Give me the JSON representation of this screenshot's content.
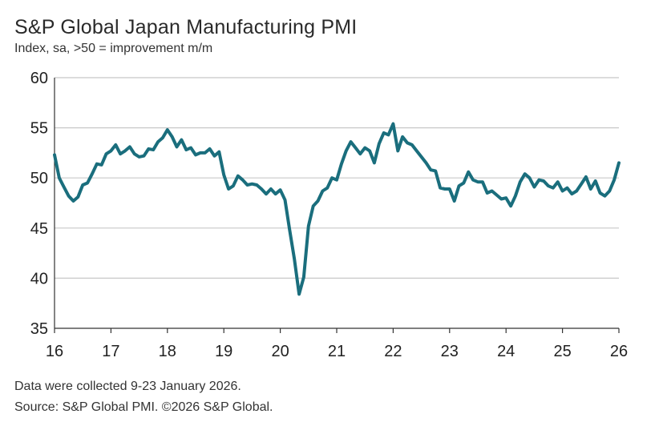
{
  "title": "S&P Global Japan Manufacturing PMI",
  "subtitle": "Index, sa, >50 = improvement m/m",
  "footnote_collection": "Data were collected 9-23 January 2026.",
  "footnote_source": "Source: S&P Global PMI. ©2026 S&P Global.",
  "colors": {
    "line": "#1a6e7d",
    "grid": "#c8c8c8",
    "axis": "#333333"
  },
  "chart_data": {
    "type": "line",
    "title": "S&P Global Japan Manufacturing PMI",
    "ylabel": "Index, sa, >50 = improvement m/m",
    "xlabel": "",
    "ylim": [
      35,
      60
    ],
    "yticks": [
      "60",
      "55",
      "50",
      "45",
      "40",
      "35"
    ],
    "yticks_values": [
      60,
      55,
      50,
      45,
      40,
      35
    ],
    "xlim": [
      16,
      26
    ],
    "xticks": [
      "16",
      "17",
      "18",
      "19",
      "20",
      "21",
      "22",
      "23",
      "24",
      "25",
      "26"
    ],
    "grid": true,
    "series": [
      {
        "name": "Japan Manufacturing PMI",
        "start_year": 16,
        "frequency": "monthly",
        "values": [
          52.3,
          50.0,
          49.1,
          48.2,
          47.7,
          48.1,
          49.3,
          49.5,
          50.4,
          51.4,
          51.3,
          52.4,
          52.7,
          53.3,
          52.4,
          52.7,
          53.1,
          52.4,
          52.1,
          52.2,
          52.9,
          52.8,
          53.6,
          54.0,
          54.8,
          54.1,
          53.1,
          53.8,
          52.8,
          53.0,
          52.3,
          52.5,
          52.5,
          52.9,
          52.2,
          52.6,
          50.3,
          48.9,
          49.2,
          50.2,
          49.8,
          49.3,
          49.4,
          49.3,
          48.9,
          48.4,
          48.9,
          48.4,
          48.8,
          47.8,
          44.8,
          41.9,
          38.4,
          40.1,
          45.2,
          47.2,
          47.7,
          48.7,
          49.0,
          50.0,
          49.8,
          51.4,
          52.7,
          53.6,
          53.0,
          52.4,
          53.0,
          52.7,
          51.5,
          53.4,
          54.5,
          54.3,
          55.4,
          52.7,
          54.1,
          53.5,
          53.3,
          52.7,
          52.1,
          51.5,
          50.8,
          50.7,
          49.0,
          48.9,
          48.9,
          47.7,
          49.2,
          49.5,
          50.6,
          49.8,
          49.6,
          49.6,
          48.5,
          48.7,
          48.3,
          47.9,
          48.0,
          47.2,
          48.2,
          49.6,
          50.4,
          50.0,
          49.1,
          49.8,
          49.7,
          49.2,
          49.0,
          49.6,
          48.7,
          49.0,
          48.4,
          48.7,
          49.4,
          50.1,
          48.9,
          49.7,
          48.5,
          48.2,
          48.7,
          49.8,
          51.5
        ]
      }
    ]
  }
}
